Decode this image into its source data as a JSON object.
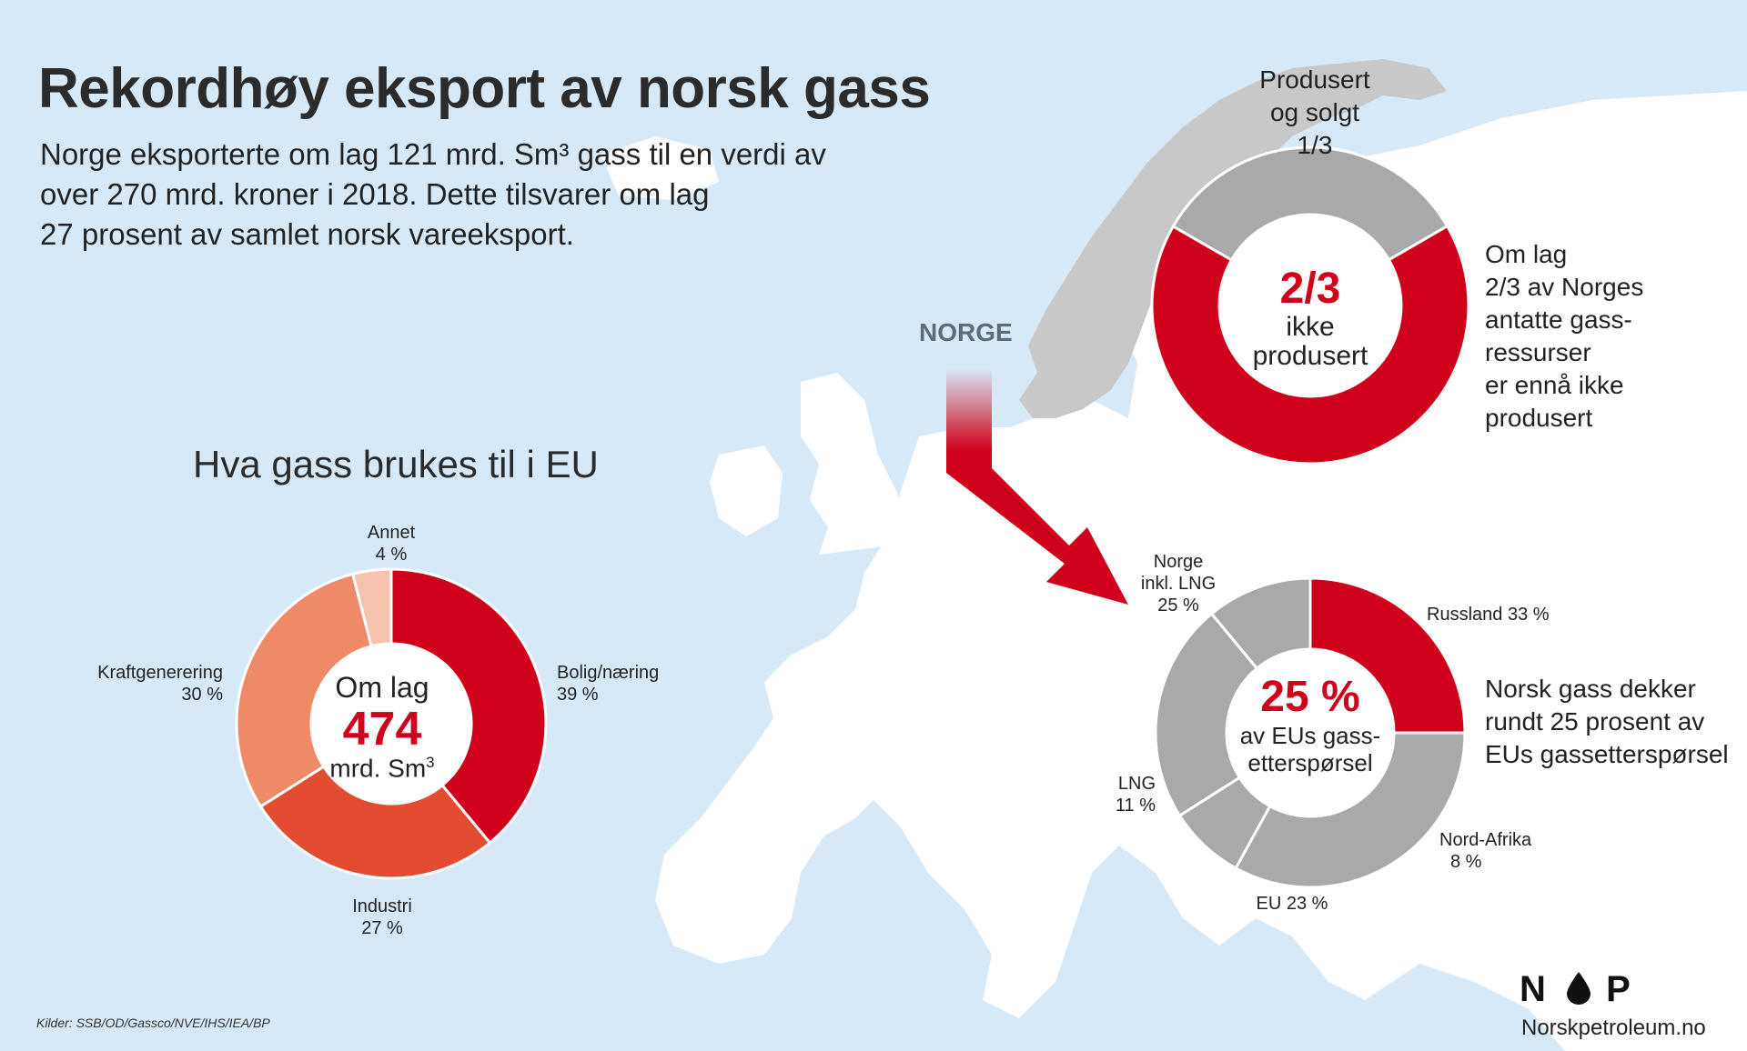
{
  "title": "Rekordhøy eksport av norsk gass",
  "intro": [
    "Norge eksporterte om lag 121 mrd. Sm³ gass til en verdi av",
    "over 270 mrd. kroner i 2018. Dette tilsvarer om lag",
    "27 prosent av samlet norsk vareeksport."
  ],
  "map": {
    "norge_label": "NORGE"
  },
  "notes": {
    "resources": [
      "Om lag",
      "2/3 av Norges",
      "antatte gass-",
      "ressurser",
      "er ennå ikke",
      "produsert"
    ],
    "supply": [
      "Norsk gass dekker",
      "rundt 25 prosent av",
      "EUs gassetterspørsel"
    ]
  },
  "chart_data": [
    {
      "type": "pie",
      "title": "Hva gass brukes til i EU",
      "categories": [
        "Bolig/næring",
        "Industri",
        "Kraftgenerering",
        "Annet"
      ],
      "values": [
        39,
        27,
        30,
        4
      ],
      "value_labels": [
        "39 %",
        "27 %",
        "30 %",
        "4 %"
      ],
      "colors": [
        "#d0021b",
        "#e34b32",
        "#ef8a68",
        "#f6c2ae"
      ],
      "center": {
        "top": "Om lag",
        "value": "474",
        "unit": "mrd. Sm",
        "unit_sup": "3"
      }
    },
    {
      "type": "pie",
      "categories": [
        "Produsert og solgt",
        "Ikke produsert"
      ],
      "values": [
        33.3,
        66.7
      ],
      "value_labels": [
        "1/3",
        "2/3"
      ],
      "label_lines": [
        "Produsert",
        "og solgt",
        "1/3"
      ],
      "colors": [
        "#a9a9a9",
        "#d0021b"
      ],
      "center": {
        "value": "2/3",
        "line1": "ikke",
        "line2": "produsert"
      }
    },
    {
      "type": "pie",
      "categories": [
        "Norge inkl. LNG",
        "Russland",
        "Nord-Afrika",
        "EU",
        "LNG"
      ],
      "values": [
        25,
        33,
        8,
        23,
        11
      ],
      "value_labels": [
        "25 %",
        "33 %",
        "8 %",
        "23 %",
        "11 %"
      ],
      "label_lines": {
        "norge": [
          "Norge",
          "inkl. LNG"
        ]
      },
      "colors": [
        "#d0021b",
        "#a9a9a9",
        "#a9a9a9",
        "#a9a9a9",
        "#a9a9a9"
      ],
      "center": {
        "value": "25 %",
        "line1": "av EUs gass-",
        "line2": "etterspørsel"
      }
    }
  ],
  "footer": {
    "sources": "Kilder: SSB/OD/Gassco/NVE/IHS/IEA/BP",
    "logo_left": "N",
    "logo_right": "P",
    "website": "Norskpetroleum.no"
  }
}
